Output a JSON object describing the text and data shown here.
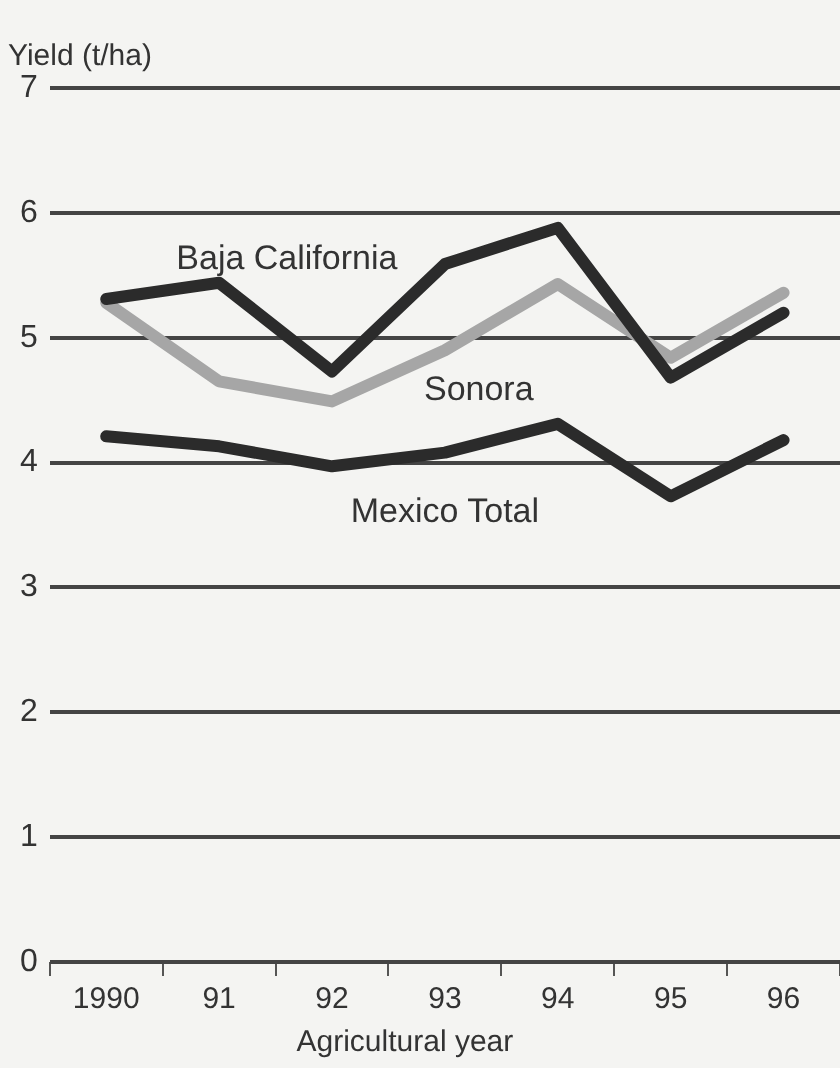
{
  "chart_data": {
    "type": "line",
    "xlabel": "Agricultural year",
    "ylabel": "Yield (t/ha)",
    "categories": [
      "1990",
      "91",
      "92",
      "93",
      "94",
      "95",
      "96"
    ],
    "series": [
      {
        "name": "Baja California",
        "color": "#2b2b2b",
        "values": [
          5.31,
          5.44,
          4.73,
          5.59,
          5.88,
          4.68,
          5.2
        ]
      },
      {
        "name": "Sonora",
        "color": "#a6a6a6",
        "values": [
          5.28,
          4.65,
          4.49,
          4.9,
          5.43,
          4.84,
          5.36
        ]
      },
      {
        "name": "Mexico Total",
        "color": "#2b2b2b",
        "values": [
          4.21,
          4.13,
          3.97,
          4.08,
          4.31,
          3.73,
          4.18
        ]
      }
    ],
    "ylim": [
      0,
      7
    ],
    "yticks": [
      0,
      1,
      2,
      3,
      4,
      5,
      6,
      7
    ],
    "grid": "y",
    "legend": false,
    "marker": "none",
    "line_style": "solid"
  }
}
